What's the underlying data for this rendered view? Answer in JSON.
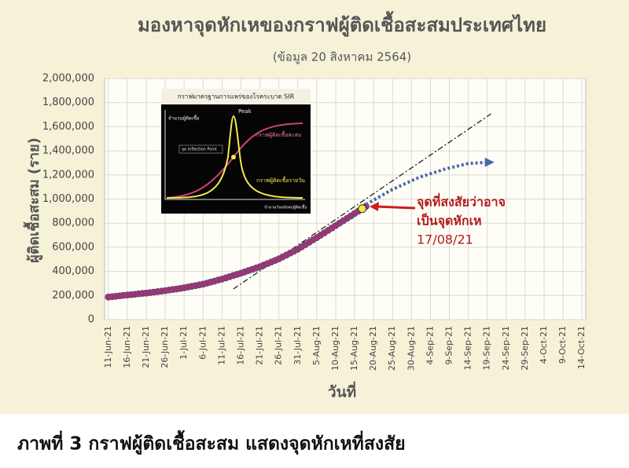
{
  "chart_data": {
    "type": "line",
    "title": "มองหาจุดหักเหของกราฟผู้ติดเชื้อสะสมประเทศไทย",
    "subtitle": "(ข้อมูล 20 สิงหาคม 2564)",
    "y_label": "ผู้ติดเชื้อสะสม (ราย)",
    "x_label": "วันที่",
    "x": [
      "2021-06-11",
      "2021-06-12",
      "2021-06-13",
      "2021-06-14",
      "2021-06-15",
      "2021-06-16",
      "2021-06-17",
      "2021-06-18",
      "2021-06-19",
      "2021-06-20",
      "2021-06-21",
      "2021-06-22",
      "2021-06-23",
      "2021-06-24",
      "2021-06-25",
      "2021-06-26",
      "2021-06-27",
      "2021-06-28",
      "2021-06-29",
      "2021-06-30",
      "2021-07-01",
      "2021-07-02",
      "2021-07-03",
      "2021-07-04",
      "2021-07-05",
      "2021-07-06",
      "2021-07-07",
      "2021-07-08",
      "2021-07-09",
      "2021-07-10",
      "2021-07-11",
      "2021-07-12",
      "2021-07-13",
      "2021-07-14",
      "2021-07-15",
      "2021-07-16",
      "2021-07-17",
      "2021-07-18",
      "2021-07-19",
      "2021-07-20",
      "2021-07-21",
      "2021-07-22",
      "2021-07-23",
      "2021-07-24",
      "2021-07-25",
      "2021-07-26",
      "2021-07-27",
      "2021-07-28",
      "2021-07-29",
      "2021-07-30",
      "2021-07-31",
      "2021-08-01",
      "2021-08-02",
      "2021-08-03",
      "2021-08-04",
      "2021-08-05",
      "2021-08-06",
      "2021-08-07",
      "2021-08-08",
      "2021-08-09",
      "2021-08-10",
      "2021-08-11",
      "2021-08-12",
      "2021-08-13",
      "2021-08-14",
      "2021-08-15",
      "2021-08-16",
      "2021-08-17",
      "2021-08-18"
    ],
    "series": [
      {
        "color": "#a3346c",
        "values": [
          187000,
          190000,
          194000,
          197000,
          201000,
          204000,
          207000,
          210000,
          214000,
          217000,
          220000,
          224000,
          228000,
          232000,
          236000,
          240000,
          245000,
          250000,
          254000,
          259000,
          264000,
          270000,
          276000,
          282000,
          288000,
          294000,
          302000,
          311000,
          319000,
          328000,
          336000,
          346000,
          356000,
          366000,
          375000,
          385000,
          396000,
          407000,
          417000,
          428000,
          439000,
          452000,
          465000,
          478000,
          491000,
          504000,
          520000,
          536000,
          552000,
          568000,
          584000,
          603000,
          622000,
          642000,
          661000,
          680000,
          700000,
          720000,
          740000,
          760000,
          780000,
          800000,
          820000,
          840000,
          860000,
          880000,
          900000,
          920000,
          940000
        ]
      }
    ],
    "xlim": [
      "2021-06-10",
      "2021-10-15"
    ],
    "xticks": [
      {
        "value": "2021-06-11",
        "label": "11-Jun-21"
      },
      {
        "value": "2021-06-16",
        "label": "16-Jun-21"
      },
      {
        "value": "2021-06-21",
        "label": "21-Jun-21"
      },
      {
        "value": "2021-06-26",
        "label": "26-Jun-21"
      },
      {
        "value": "2021-07-01",
        "label": "1-Jul-21"
      },
      {
        "value": "2021-07-06",
        "label": "6-Jul-21"
      },
      {
        "value": "2021-07-11",
        "label": "11-Jul-21"
      },
      {
        "value": "2021-07-16",
        "label": "16-Jul-21"
      },
      {
        "value": "2021-07-21",
        "label": "21-Jul-21"
      },
      {
        "value": "2021-07-26",
        "label": "26-Jul-21"
      },
      {
        "value": "2021-07-31",
        "label": "31-Jul-21"
      },
      {
        "value": "2021-08-05",
        "label": "5-Aug-21"
      },
      {
        "value": "2021-08-10",
        "label": "10-Aug-21"
      },
      {
        "value": "2021-08-15",
        "label": "15-Aug-21"
      },
      {
        "value": "2021-08-20",
        "label": "20-Aug-21"
      },
      {
        "value": "2021-08-25",
        "label": "25-Aug-21"
      },
      {
        "value": "2021-08-30",
        "label": "30-Aug-21"
      },
      {
        "value": "2021-09-04",
        "label": "4-Sep-21"
      },
      {
        "value": "2021-09-09",
        "label": "9-Sep-21"
      },
      {
        "value": "2021-09-14",
        "label": "14-Sep-21"
      },
      {
        "value": "2021-09-19",
        "label": "19-Sep-21"
      },
      {
        "value": "2021-09-24",
        "label": "24-Sep-21"
      },
      {
        "value": "2021-09-29",
        "label": "29-Sep-21"
      },
      {
        "value": "2021-10-04",
        "label": "4-Oct-21"
      },
      {
        "value": "2021-10-09",
        "label": "9-Oct-21"
      },
      {
        "value": "2021-10-14",
        "label": "14-Oct-21"
      }
    ],
    "ylim": [
      0,
      2000000
    ],
    "yticks": [
      0,
      {
        "value": 200000,
        "label": "200,000"
      },
      {
        "value": 400000,
        "label": "400,000"
      },
      {
        "value": 600000,
        "label": "600,000"
      },
      {
        "value": 800000,
        "label": "800,000"
      },
      {
        "value": 1000000,
        "label": "1,000,000"
      },
      {
        "value": 1200000,
        "label": "1,200,000"
      },
      {
        "value": 1400000,
        "label": "1,400,000"
      },
      {
        "value": 1600000,
        "label": "1,600,000"
      },
      {
        "value": 1800000,
        "label": "1,800,000"
      },
      {
        "value": 2000000,
        "label": "2,000,000"
      }
    ],
    "grid": true,
    "projection": {
      "color": "#4a67a8",
      "x": [
        "2021-08-18",
        "2021-08-25",
        "2021-09-01",
        "2021-09-08",
        "2021-09-14",
        "2021-09-19"
      ],
      "values": [
        955000,
        1080000,
        1180000,
        1250000,
        1295000,
        1305000
      ]
    },
    "tangent": {
      "color": "#222222",
      "x": [
        "2021-07-14",
        "2021-09-20"
      ],
      "values": [
        254000,
        1707000
      ]
    },
    "annotation": {
      "lines": [
        "จุดที่สงสัยว่าอาจ",
        "เป็นจุดหักเห",
        "17/08/21"
      ],
      "color": "#b01c1c",
      "x": "2021-08-17",
      "value": 920000
    }
  },
  "inset": {
    "title": "กราฟมาตรฐานการแพร่ของโรคระบาด SIR",
    "y_label": "จำนวนผู้ติดเชื้อ",
    "x_label": "จำนวนวันหลังพบผู้ติดเชื้อ",
    "peak": "Peak",
    "cumulative": "กราฟผู้ติดเชื้อสะสม",
    "inflection": "จุด inflection Point",
    "daily": "กราฟผู้ติดเชื้อรายวัน"
  },
  "caption": "ภาพที่ 3 กราฟผู้ติดเชื้อสะสม แสดงจุดหักเหที่สงสัย"
}
